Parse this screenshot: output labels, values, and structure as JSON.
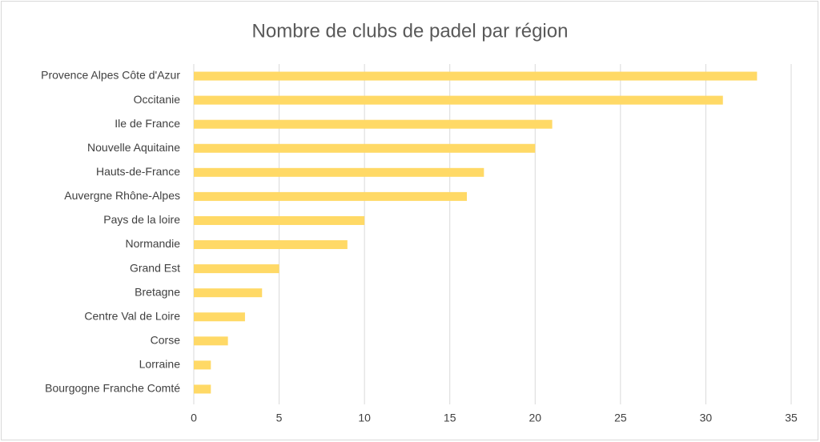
{
  "chart_data": {
    "type": "bar",
    "orientation": "horizontal",
    "title": "Nombre de clubs de padel par région",
    "categories": [
      "Provence Alpes Côte d'Azur",
      "Occitanie",
      "Ile de France",
      "Nouvelle Aquitaine",
      "Hauts-de-France",
      "Auvergne Rhône-Alpes",
      "Pays de la loire",
      "Normandie",
      "Grand Est",
      "Bretagne",
      "Centre Val de Loire",
      "Corse",
      "Lorraine",
      "Bourgogne Franche Comté"
    ],
    "values": [
      33,
      31,
      21,
      20,
      17,
      16,
      10,
      9,
      5,
      4,
      3,
      2,
      1,
      1
    ],
    "color": "#ffd966",
    "xlim": [
      0,
      35
    ],
    "xticks": [
      0,
      5,
      10,
      15,
      20,
      25,
      30,
      35
    ],
    "grid": true
  }
}
